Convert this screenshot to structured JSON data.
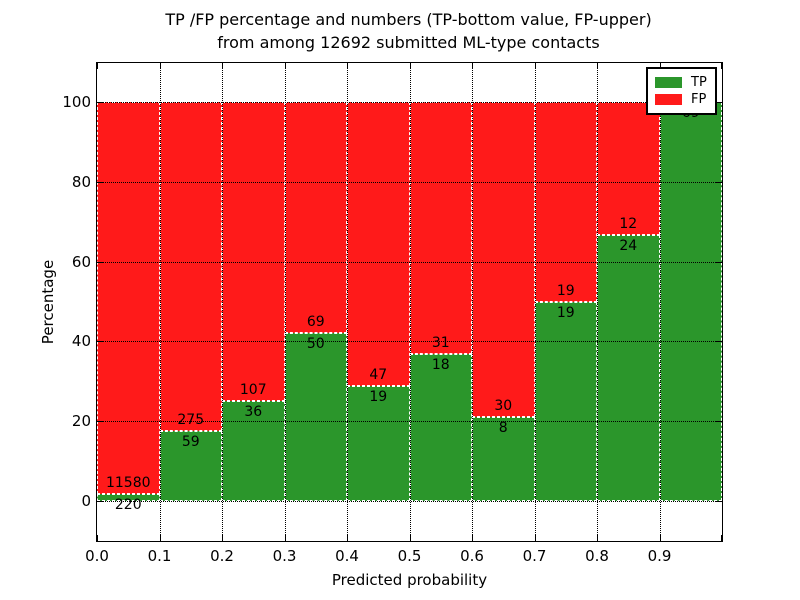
{
  "title_line1": "TP /FP percentage and numbers (TP-bottom value, FP-upper)",
  "title_line2": "from among 12692 submitted ML-type contacts",
  "colors": {
    "tp": "#2B962B",
    "fp": "#FF1A1A",
    "grid": "#000000",
    "bar_edge": "#FFFFFF",
    "text": "#000000"
  },
  "legend": {
    "items": [
      {
        "label": "TP",
        "color_key": "tp"
      },
      {
        "label": "FP",
        "color_key": "fp"
      }
    ]
  },
  "chart_data": {
    "type": "bar",
    "stacked": true,
    "title": "TP /FP percentage and numbers (TP-bottom value, FP-upper) from among 12692 submitted ML-type contacts",
    "total_submitted_contacts": 12692,
    "xlabel": "Predicted probability",
    "ylabel": "Percentage",
    "xlim": [
      0.0,
      1.0
    ],
    "ylim": [
      -10,
      110
    ],
    "grid": true,
    "legend_position": "upper right",
    "yticks": [
      0,
      20,
      40,
      60,
      80,
      100
    ],
    "xtick_labels": [
      "0.0",
      "0.1",
      "0.2",
      "0.3",
      "0.4",
      "0.5",
      "0.6",
      "0.7",
      "0.8",
      "0.9"
    ],
    "series_note": "green TP stacked below red FP, each bar sums to 100%; labels show raw counts (TP below boundary, FP above)",
    "bins": [
      {
        "x_start": 0.0,
        "x_end": 0.1,
        "tp_count": 220,
        "fp_count": 11580,
        "tp_pct": 1.86,
        "fp_pct": 98.14
      },
      {
        "x_start": 0.1,
        "x_end": 0.2,
        "tp_count": 59,
        "fp_count": 275,
        "tp_pct": 17.66,
        "fp_pct": 82.34
      },
      {
        "x_start": 0.2,
        "x_end": 0.3,
        "tp_count": 36,
        "fp_count": 107,
        "tp_pct": 25.17,
        "fp_pct": 74.83
      },
      {
        "x_start": 0.3,
        "x_end": 0.4,
        "tp_count": 50,
        "fp_count": 69,
        "tp_pct": 42.02,
        "fp_pct": 57.98
      },
      {
        "x_start": 0.4,
        "x_end": 0.5,
        "tp_count": 19,
        "fp_count": 47,
        "tp_pct": 28.79,
        "fp_pct": 71.21
      },
      {
        "x_start": 0.5,
        "x_end": 0.6,
        "tp_count": 18,
        "fp_count": 31,
        "tp_pct": 36.73,
        "fp_pct": 63.27
      },
      {
        "x_start": 0.6,
        "x_end": 0.7,
        "tp_count": 8,
        "fp_count": 30,
        "tp_pct": 21.05,
        "fp_pct": 78.95
      },
      {
        "x_start": 0.7,
        "x_end": 0.8,
        "tp_count": 19,
        "fp_count": 19,
        "tp_pct": 50.0,
        "fp_pct": 50.0
      },
      {
        "x_start": 0.8,
        "x_end": 0.9,
        "tp_count": 24,
        "fp_count": 12,
        "tp_pct": 66.67,
        "fp_pct": 33.33
      },
      {
        "x_start": 0.9,
        "x_end": 1.0,
        "tp_count": 69,
        "fp_count": null,
        "tp_pct": 100.0,
        "fp_pct": 0.0
      }
    ]
  }
}
